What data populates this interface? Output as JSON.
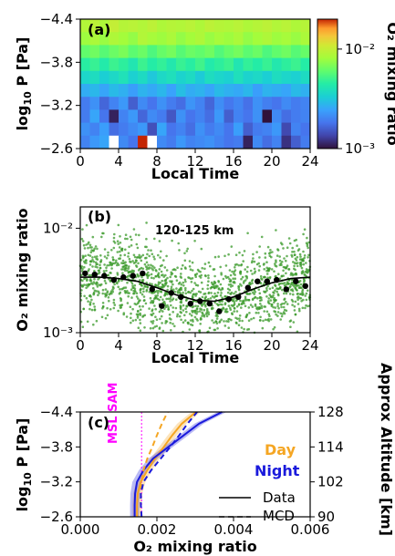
{
  "chart_data": [
    {
      "panel": "(a)",
      "type": "heatmap",
      "xlabel": "Local Time",
      "ylabel": "log10 P [Pa]",
      "ylabel_main": "log",
      "ylabel_sub": "10",
      "ylabel_rest": " P [Pa]",
      "xticks": [
        "0",
        "4",
        "8",
        "12",
        "16",
        "20",
        "24"
      ],
      "yticks": [
        "−4.4",
        "−3.8",
        "−3.2",
        "−2.6"
      ],
      "xlim": [
        0,
        24
      ],
      "ylim": [
        -2.6,
        -4.4
      ],
      "colorbar": {
        "label": "O₂ mixing ratio",
        "scale": "log",
        "range": [
          0.001,
          0.02
        ],
        "ticks": [
          {
            "label": "10⁻²",
            "value": 0.01
          },
          {
            "label": "10⁻³",
            "value": 0.001
          }
        ]
      },
      "rows_top_to_bottom_log10_mixing_ratio": [
        [
          -2.05,
          -2.02,
          -2.06,
          -2.0,
          -2.04,
          -2.03,
          -2.05,
          -2.02,
          -2.06,
          -2.04,
          -2.05,
          -2.03,
          -2.06,
          -2.02,
          -2.04,
          -2.05,
          -2.03,
          -2.06,
          -2.04,
          -2.02,
          -2.05,
          -2.03,
          -2.06,
          -2.04
        ],
        [
          -2.1,
          -2.07,
          -2.11,
          -2.06,
          -2.09,
          -2.12,
          -2.05,
          -2.08,
          -2.1,
          -2.07,
          -2.12,
          -2.09,
          -2.06,
          -2.11,
          -2.08,
          -2.1,
          -2.07,
          -2.12,
          -2.09,
          -2.06,
          -2.1,
          -2.08,
          -2.11,
          -2.07
        ],
        [
          -2.22,
          -2.19,
          -2.24,
          -2.2,
          -2.17,
          -2.23,
          -2.2,
          -2.26,
          -2.21,
          -2.18,
          -2.24,
          -2.2,
          -2.22,
          -2.19,
          -2.25,
          -2.21,
          -2.18,
          -2.23,
          -2.2,
          -2.26,
          -2.22,
          -2.19,
          -2.24,
          -2.21
        ],
        [
          -2.34,
          -2.31,
          -2.36,
          -2.3,
          -2.33,
          -2.38,
          -2.3,
          -2.35,
          -2.32,
          -2.37,
          -2.31,
          -2.34,
          -2.29,
          -2.36,
          -2.33,
          -2.3,
          -2.38,
          -2.32,
          -2.35,
          -2.31,
          -2.37,
          -2.33,
          -2.3,
          -2.35
        ],
        [
          -2.45,
          -2.42,
          -2.48,
          -2.44,
          -2.4,
          -2.47,
          -2.43,
          -2.5,
          -2.44,
          -2.41,
          -2.46,
          -2.43,
          -2.49,
          -2.42,
          -2.45,
          -2.47,
          -2.41,
          -2.46,
          -2.44,
          -2.48,
          -2.42,
          -2.45,
          -2.47,
          -2.43
        ],
        [
          -2.58,
          -2.55,
          -2.6,
          -2.54,
          -2.57,
          -2.62,
          -2.56,
          -2.59,
          -2.55,
          -2.61,
          -2.53,
          -2.58,
          -2.56,
          -2.6,
          -2.54,
          -2.57,
          -2.59,
          -2.55,
          -2.62,
          -2.56,
          -2.58,
          -2.6,
          -2.54,
          -2.57
        ],
        [
          -2.72,
          -2.66,
          -2.78,
          -2.7,
          -2.64,
          -2.8,
          -2.68,
          -2.74,
          -2.66,
          -2.72,
          -2.76,
          -2.65,
          -2.7,
          -2.78,
          -2.67,
          -2.73,
          -2.69,
          -2.75,
          -2.66,
          -2.71,
          -2.74,
          -2.68,
          -2.72,
          -2.7
        ],
        [
          -2.72,
          -2.6,
          -2.74,
          -2.96,
          -2.7,
          -2.64,
          -2.78,
          -2.68,
          -2.72,
          -2.82,
          -2.66,
          -2.74,
          -2.7,
          -2.76,
          -2.64,
          -2.8,
          -2.7,
          -2.74,
          -2.66,
          -3.02,
          -2.68,
          -2.76,
          -2.72,
          -2.7
        ],
        [
          -2.66,
          -2.7,
          -2.62,
          -2.76,
          -2.72,
          -2.68,
          -2.64,
          -2.84,
          -2.6,
          -2.74,
          -2.7,
          -2.76,
          -2.66,
          -2.72,
          -2.68,
          -2.74,
          -2.62,
          -2.8,
          -2.72,
          -2.7,
          -2.64,
          -2.86,
          -2.7,
          -2.74
        ],
        [
          -2.7,
          -2.64,
          -2.6,
          null,
          -2.68,
          -2.74,
          -1.6,
          null,
          -2.68,
          -2.72,
          -2.64,
          -2.7,
          -2.68,
          -2.66,
          -2.7,
          -2.74,
          -2.72,
          -2.96,
          -2.68,
          -2.76,
          -2.7,
          -2.92,
          -2.8,
          -2.72
        ]
      ]
    },
    {
      "panel": "(b)",
      "type": "scatter",
      "annotation": "120-125 km",
      "xlabel": "Local Time",
      "ylabel": "O₂ mixing ratio",
      "xticks": [
        "0",
        "4",
        "8",
        "12",
        "16",
        "20",
        "24"
      ],
      "yticks": [
        {
          "label": "10⁻²",
          "value": 0.01
        },
        {
          "label": "10⁻³",
          "value": 0.001
        }
      ],
      "xlim": [
        0,
        24
      ],
      "ylim": [
        0.001,
        0.016
      ],
      "yscale": "log",
      "scatter_cloud": {
        "n_points": 1600,
        "center_log10": -2.45,
        "spread_log10": 0.2
      },
      "binned_means": {
        "x": [
          0.5,
          1.5,
          2.5,
          3.5,
          4.5,
          5.5,
          6.5,
          7.5,
          8.5,
          9.5,
          10.5,
          11.5,
          12.5,
          13.5,
          14.5,
          15.5,
          16.5,
          17.5,
          18.5,
          19.5,
          20.5,
          21.5,
          22.5,
          23.5
        ],
        "y": [
          0.0037,
          0.0036,
          0.0035,
          0.0032,
          0.0034,
          0.0035,
          0.0037,
          0.0026,
          0.0018,
          0.0024,
          0.0022,
          0.0019,
          0.002,
          0.0019,
          0.0016,
          0.0021,
          0.0022,
          0.0027,
          0.0031,
          0.0031,
          0.0032,
          0.0026,
          0.0031,
          0.0028
        ]
      },
      "fit_line": {
        "x": [
          0,
          2,
          4,
          6,
          8,
          10,
          12,
          14,
          16,
          18,
          20,
          22,
          24
        ],
        "y": [
          0.0034,
          0.0034,
          0.0033,
          0.0031,
          0.0027,
          0.0023,
          0.00205,
          0.002,
          0.0022,
          0.0026,
          0.003,
          0.0033,
          0.0034
        ]
      }
    },
    {
      "panel": "(c)",
      "type": "line",
      "xlabel": "O₂ mixing ratio",
      "ylabel": "log10 P [Pa]",
      "ylabel_main": "log",
      "ylabel_sub": "10",
      "ylabel_rest": " P [Pa]",
      "ylabel_right": "Approx Altitude [km]",
      "xticks": [
        "0.000",
        "0.002",
        "0.004",
        "0.006"
      ],
      "yticks": [
        "−4.4",
        "−3.8",
        "−3.2",
        "−2.6"
      ],
      "yticks_right": [
        "128",
        "114",
        "102",
        "90"
      ],
      "xlim": [
        0,
        0.006
      ],
      "ylim": [
        -2.6,
        -4.4
      ],
      "vline": {
        "label": "MSL SAM",
        "x": 0.0016,
        "color": "#ff00ff"
      },
      "legend_text": {
        "day": "Day",
        "night": "Night",
        "data": "Data",
        "mcd": "MCD"
      },
      "colors": {
        "day": "#f5a623",
        "night": "#1a1adc"
      },
      "series": [
        {
          "name": "Day",
          "style": "Data",
          "y": [
            -2.6,
            -2.8,
            -3.0,
            -3.2,
            -3.4,
            -3.6,
            -3.8,
            -4.0,
            -4.2,
            -4.4
          ],
          "x": [
            0.00148,
            0.00148,
            0.0015,
            0.00158,
            0.00175,
            0.00195,
            0.00218,
            0.0024,
            0.00265,
            0.00302
          ]
        },
        {
          "name": "Night",
          "style": "Data",
          "y": [
            -2.6,
            -2.8,
            -3.0,
            -3.2,
            -3.4,
            -3.6,
            -3.8,
            -4.0,
            -4.2,
            -4.4
          ],
          "x": [
            0.00142,
            0.00142,
            0.00143,
            0.00148,
            0.00165,
            0.0019,
            0.0023,
            0.0027,
            0.0031,
            0.0037
          ]
        },
        {
          "name": "Day",
          "style": "MCD",
          "y": [
            -2.6,
            -2.8,
            -3.0,
            -3.2,
            -3.4,
            -3.6,
            -3.8,
            -4.0,
            -4.2,
            -4.4
          ],
          "x": [
            0.0016,
            0.00158,
            0.00158,
            0.0016,
            0.00165,
            0.00175,
            0.00188,
            0.002,
            0.00213,
            0.00228
          ]
        },
        {
          "name": "Night",
          "style": "MCD",
          "y": [
            -2.6,
            -2.8,
            -3.0,
            -3.2,
            -3.4,
            -3.6,
            -3.8,
            -4.0,
            -4.2,
            -4.4
          ],
          "x": [
            0.0016,
            0.00158,
            0.00158,
            0.00165,
            0.00185,
            0.0021,
            0.00235,
            0.00258,
            0.0028,
            0.00305
          ]
        }
      ]
    }
  ]
}
